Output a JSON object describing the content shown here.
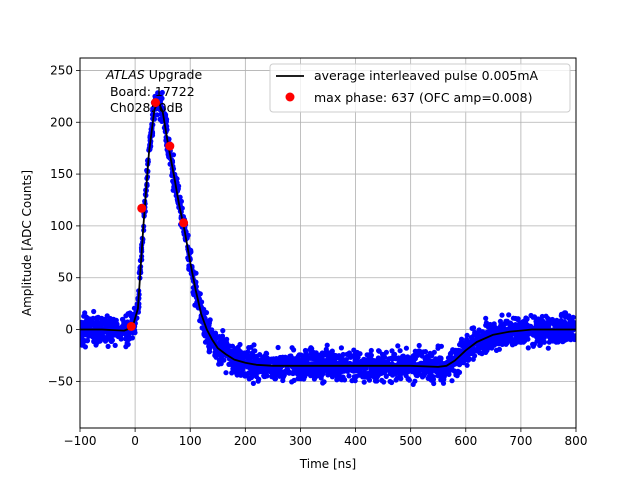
{
  "chart_data": {
    "type": "scatter",
    "xlabel": "Time [ns]",
    "ylabel": "Amplitude [ADC Counts]",
    "xlim": [
      -100,
      800
    ],
    "ylim": [
      -95,
      262
    ],
    "xticks": [
      -100,
      0,
      100,
      200,
      300,
      400,
      500,
      600,
      700,
      800
    ],
    "yticks": [
      -50,
      0,
      50,
      100,
      150,
      200,
      250
    ],
    "grid": true,
    "legend_placement": "top-right",
    "annotation": {
      "italic": "ATLAS",
      "text": " Upgrade",
      "board": " Board: 17722",
      "channel": " Ch028: 0dB"
    },
    "series": [
      {
        "name": "average interleaved pulse 0.005mA",
        "kind": "line",
        "color": "#000000",
        "x": [
          -100,
          -60,
          -20,
          -5,
          5,
          15,
          25,
          35,
          42,
          50,
          60,
          70,
          80,
          90,
          100,
          110,
          120,
          130,
          140,
          150,
          165,
          180,
          200,
          220,
          250,
          300,
          350,
          400,
          450,
          500,
          550,
          565,
          580,
          600,
          620,
          650,
          680,
          700,
          720,
          750,
          800
        ],
        "y": [
          0,
          0,
          -1,
          2,
          20,
          100,
          170,
          212,
          220,
          210,
          178,
          150,
          120,
          95,
          65,
          38,
          15,
          0,
          -10,
          -18,
          -24,
          -29,
          -32,
          -34,
          -35,
          -35,
          -35,
          -35,
          -35,
          -35,
          -36,
          -35,
          -30,
          -20,
          -12,
          -5,
          -2,
          -1,
          0,
          0,
          0
        ]
      },
      {
        "name": "max phase: 637 (OFC amp=0.008)",
        "kind": "points",
        "color": "#ff0000",
        "x": [
          -7,
          12,
          37,
          63,
          88
        ],
        "y": [
          3,
          117,
          219,
          177,
          103
        ]
      },
      {
        "name": "",
        "kind": "scatter-band",
        "color": "#0000ff",
        "spread": 13
      }
    ]
  }
}
